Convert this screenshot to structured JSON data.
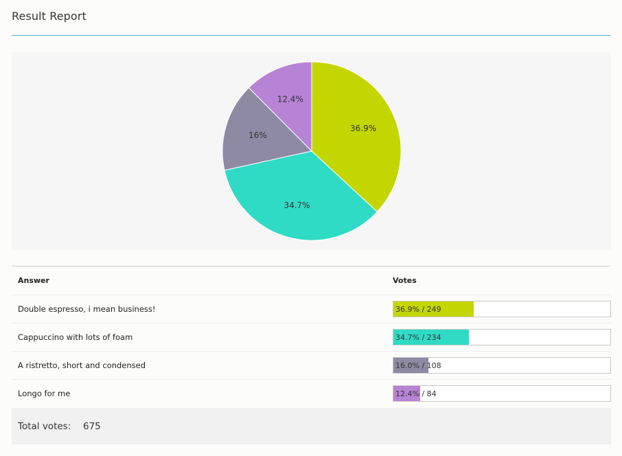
{
  "report": {
    "title": "Result Report"
  },
  "chart_data": {
    "type": "pie",
    "categories": [
      "Double espresso, i mean business!",
      "Cappuccino with lots of foam",
      "A ristretto, short and condensed",
      "Longo for me"
    ],
    "values": [
      249,
      234,
      108,
      84
    ],
    "labels": [
      "36.9%",
      "34.7%",
      "16%",
      "12.4%"
    ],
    "colors": [
      "#c4d600",
      "#30dbc5",
      "#8e8aa4",
      "#b783d5"
    ]
  },
  "table": {
    "answer_header": "Answer",
    "votes_header": "Votes",
    "rows": [
      {
        "answer": "Double espresso, i mean business!",
        "votes_text": "36.9% / 249",
        "percent": 36.9,
        "color": "#c4d600"
      },
      {
        "answer": "Cappuccino with lots of foam",
        "votes_text": "34.7% / 234",
        "percent": 34.7,
        "color": "#30dbc5"
      },
      {
        "answer": "A ristretto, short and condensed",
        "votes_text": "16.0% / 108",
        "percent": 16.0,
        "color": "#8e8aa4"
      },
      {
        "answer": "Longo for me",
        "votes_text": "12.4% / 84",
        "percent": 12.4,
        "color": "#b783d5"
      }
    ]
  },
  "total": {
    "label": "Total votes:",
    "value": "675"
  },
  "colors": {
    "accent_rule": "#4fb6cf"
  }
}
